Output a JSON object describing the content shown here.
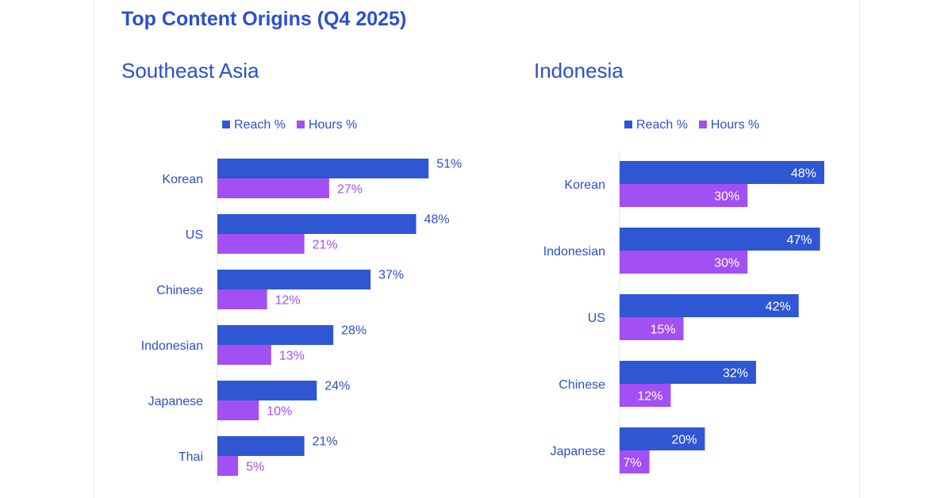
{
  "title": "Top Content Origins (Q4 2025)",
  "colors": {
    "reach": "#2f57d4",
    "hours": "#a24ff3",
    "text": "#2b4fcf"
  },
  "chart_data": [
    {
      "type": "bar",
      "orientation": "horizontal",
      "title": "Southeast Asia",
      "legend": "top",
      "value_labels": "outside",
      "categories": [
        "Korean",
        "US",
        "Chinese",
        "Indonesian",
        "Japanese",
        "Thai"
      ],
      "series": [
        {
          "name": "Reach %",
          "values": [
            51,
            48,
            37,
            28,
            24,
            21
          ],
          "labels": [
            "51%",
            "48%",
            "37%",
            "28%",
            "24%",
            "21%"
          ]
        },
        {
          "name": "Hours %",
          "values": [
            27,
            21,
            12,
            13,
            10,
            5
          ],
          "labels": [
            "27%",
            "21%",
            "12%",
            "13%",
            "10%",
            "5%"
          ]
        }
      ]
    },
    {
      "type": "bar",
      "orientation": "horizontal",
      "title": "Indonesia",
      "legend": "top",
      "value_labels": "inside",
      "categories": [
        "Korean",
        "Indonesian",
        "US",
        "Chinese",
        "Japanese"
      ],
      "series": [
        {
          "name": "Reach %",
          "values": [
            48,
            47,
            42,
            32,
            20
          ],
          "labels": [
            "48%",
            "47%",
            "42%",
            "32%",
            "20%"
          ]
        },
        {
          "name": "Hours %",
          "values": [
            30,
            30,
            15,
            12,
            7
          ],
          "labels": [
            "30%",
            "30%",
            "15%",
            "12%",
            "7%"
          ]
        }
      ]
    }
  ]
}
